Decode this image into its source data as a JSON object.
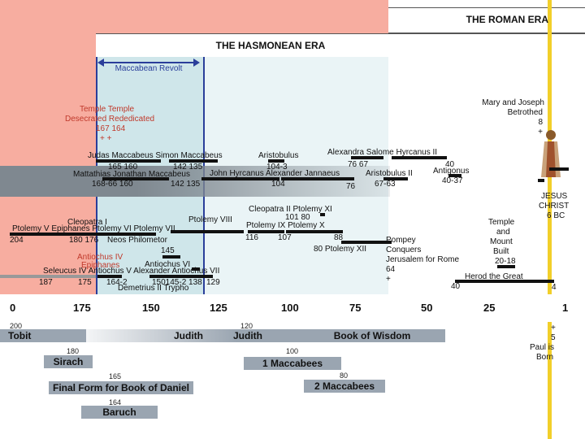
{
  "eras": {
    "roman": "THE ROMAN ERA",
    "hasmonean": "THE HASMONEAN ERA",
    "maccabean_revolt": "Maccabean Revolt"
  },
  "colors": {
    "salmon": "#f7ada0",
    "band": "#cfe6ea",
    "blue": "#2a3e9a",
    "gold": "#f2cf2a",
    "book": "#9aa5b1"
  },
  "temple": {
    "l1": "Temple Temple",
    "l2": "Desecrated Rededicated",
    "l3": "167 164",
    "l4": "+ +"
  },
  "mary_joseph": {
    "l1": "Mary and Joseph",
    "l2": "Betrothed",
    "l3": "8",
    "l4": "+"
  },
  "jesus": {
    "l1": "JESUS",
    "l2": "CHRIST",
    "l3": "6 BC"
  },
  "temple_mount": {
    "l1": "Temple",
    "l2": "and",
    "l3": "Mount",
    "l4": "Built",
    "l5": "20-18"
  },
  "pompey": {
    "l1": "Pompey",
    "l2": "Conquers",
    "l3": "Jerusalem for Rome",
    "l4": "64",
    "l5": "+"
  },
  "herod": {
    "label": "Herod the Great",
    "year": "40",
    "end": "4"
  },
  "paul": {
    "l1": "+",
    "l2": "5",
    "l3": "Paul is",
    "l4": "Born"
  },
  "rulers": {
    "judas_simon": "Judas Maccabeus Simon Maccabeus",
    "aristobulus": "Aristobulus",
    "alexandra_hyrcanus": "Alexandra Salome Hyrcanus II",
    "y165_160": "165 160",
    "y142_135a": "142  135",
    "y104_3": "104-3",
    "y76_67": "76    67",
    "y40": "40",
    "antigonus": "Antigonus",
    "mattathias_line": "Mattathias Jonathan Maccabeus",
    "john_alexander": "John Hyrcanus  Alexander  Jannaeus",
    "aristobulus_ii": "Aristobulus II",
    "y40_37": "40-37",
    "y168_66": "168-66  160",
    "y142_135b": "142  135",
    "y104": "104",
    "y76": "76",
    "y67_63": "67-63",
    "cleopatra_ii": "Cleopatra II  Ptolemy XI",
    "y101_80": "101     80",
    "ptolemy_viii": "Ptolemy VIII",
    "ptolemy_ix_x": "Ptolemy IX  Ptolemy  X",
    "cleopatra_i": "Cleopatra I",
    "ptolemy_v_vi_vii": "Ptolemy V Epiphanes  Ptolemy VI   Ptolemy VII",
    "y116": "116",
    "y107": "107",
    "y88": "88",
    "y204": "204",
    "y180_176": "180 176",
    "philometor": "Neos Philometor",
    "y80_xii": "80  Ptolemy  XII",
    "antiochus_iv": "Antiochus IV",
    "epiphanes": "Epiphanes",
    "y145": "145",
    "antiochus_vi": "Antiochus VI",
    "seleucus_line": "Seleucus IV  Antiochus V Alexander Antiochus VII",
    "y187": "187",
    "y175": "175",
    "y164_2": "164-2",
    "y150_138": "150145-2  138",
    "y129": "129",
    "demetrius": "Demetrius II  Trypho"
  },
  "axis": [
    "0",
    "175",
    "150",
    "125",
    "100",
    "75",
    "50",
    "25",
    "1"
  ],
  "books": {
    "tobit": {
      "year": "200",
      "name": "Tobit"
    },
    "judith": {
      "year": "120",
      "name": "Judith"
    },
    "wisdom": {
      "name": "Book of Wisdom"
    },
    "sirach": {
      "year": "180",
      "name": "Sirach"
    },
    "maccabees1": {
      "year": "100",
      "name": "1 Maccabees"
    },
    "maccabees2": {
      "year": "80",
      "name": "2 Maccabees"
    },
    "daniel": {
      "year": "165",
      "name": "Final Form for Book of Daniel"
    },
    "baruch": {
      "year": "164",
      "name": "Baruch"
    }
  }
}
